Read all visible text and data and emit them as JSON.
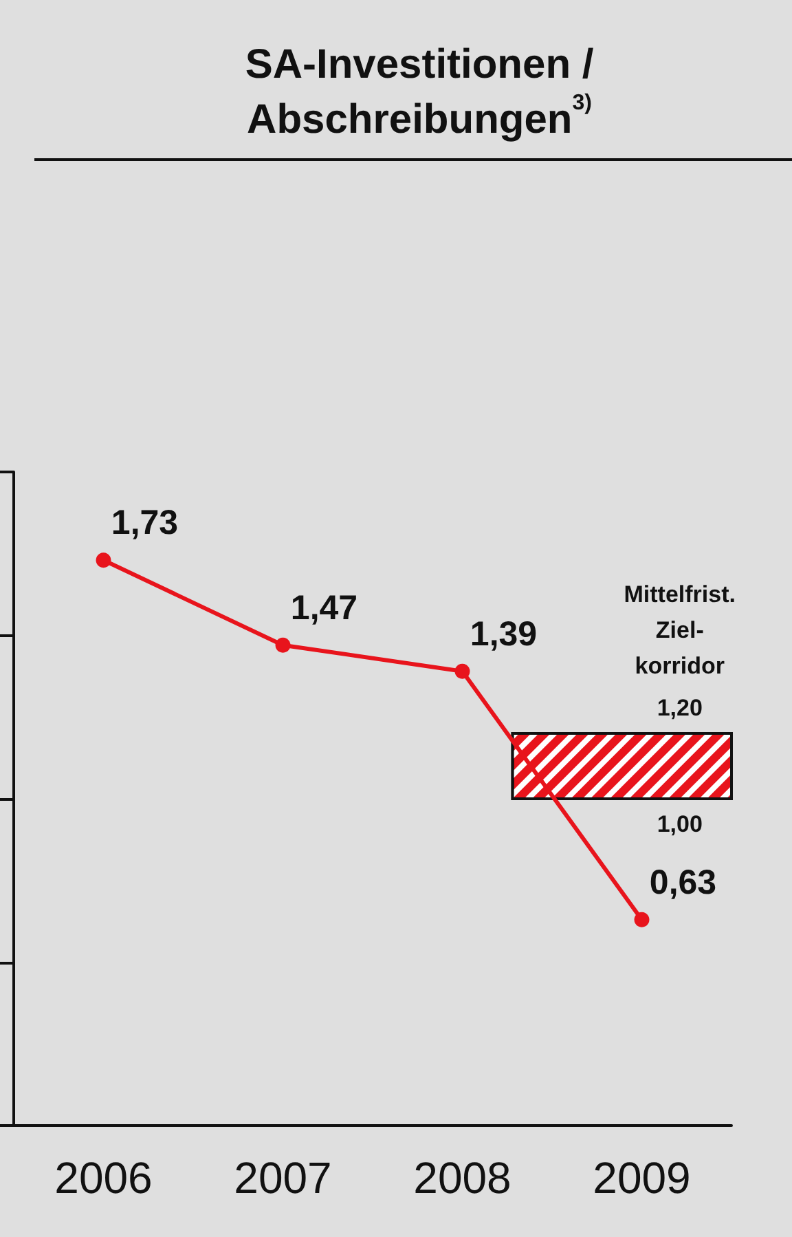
{
  "chart_data": {
    "type": "line",
    "title": "SA-Investitionen / Abschreibungen$^{3)}$",
    "categories": [
      "2006",
      "2007",
      "2008",
      "2009"
    ],
    "series": [
      {
        "color": "#e8141c",
        "values": [
          1.73,
          1.47,
          1.39,
          0.63
        ],
        "value_labels": [
          "1,73",
          "1,47",
          "1,39",
          "0,63"
        ]
      }
    ],
    "ylim": [
      0,
      2
    ],
    "yticks": [
      {
        "value": 0,
        "label": null
      },
      {
        "value": 0.5,
        "label": null
      },
      {
        "value": 1,
        "label": null
      },
      {
        "value": 1.5,
        "label": null
      },
      {
        "value": 2,
        "label": null
      }
    ],
    "tick_labels": "x",
    "marker": "circle",
    "line_style": "solid",
    "bands": [
      {
        "axis": "y",
        "from": 1.0,
        "to": 1.2,
        "label": "Mittelfrist. Ziel-korridor",
        "color": "#e8141c"
      }
    ],
    "annotations": [
      {
        "text": "1,20",
        "y": 1.2
      },
      {
        "text": "1,00",
        "y": 1.0
      }
    ]
  }
}
